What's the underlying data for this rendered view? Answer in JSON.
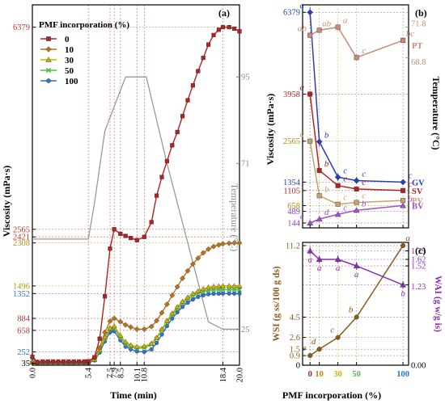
{
  "chart_data": [
    {
      "panel": "(a)",
      "type": "line",
      "xlabel": "Time (min)",
      "ylabel": "Viscosity (mPa·s)",
      "ylabel2": "Temperature (°C)",
      "xlim": [
        0,
        20
      ],
      "ylim": [
        0,
        6800
      ],
      "ylim2": [
        15,
        115
      ],
      "x_ticks": [
        0.0,
        5.4,
        7.5,
        7.9,
        8.5,
        10.1,
        10.8,
        18.4,
        20.0
      ],
      "x_tick_labels": [
        "0.0",
        "5.4",
        "7.5",
        "7.9",
        "8.5",
        "10.1",
        "10.8",
        "18.4",
        "20.0"
      ],
      "y_ticks": [
        35,
        252,
        658,
        884,
        1352,
        1496,
        2308,
        2421,
        2565,
        6379
      ],
      "y_tick_colors": [
        "#000000",
        "#2e6fd8",
        "#c0392b",
        "#c0392b",
        "#2e6fd8",
        "#b59b00",
        "#c08a18",
        "#c0392b",
        "#c0392b",
        "#c0392b"
      ],
      "y2_ticks": [
        25,
        71,
        95
      ],
      "legend_title": "PMF incorporation (%)",
      "legend_position": "top-left",
      "series": [
        {
          "name": "0",
          "color": "#b22222",
          "marker": "square",
          "x": [
            0,
            0.5,
            1,
            1.5,
            2,
            2.5,
            3,
            3.5,
            4,
            4.5,
            5,
            5.4,
            6,
            6.5,
            7,
            7.5,
            7.9,
            8.5,
            9,
            9.5,
            10.1,
            10.8,
            11.5,
            12,
            12.5,
            13,
            13.5,
            14,
            14.5,
            15,
            15.5,
            16,
            16.5,
            17,
            17.5,
            18,
            18.4,
            19,
            19.5,
            20
          ],
          "y": [
            160,
            60,
            70,
            70,
            70,
            70,
            70,
            70,
            70,
            70,
            70,
            75,
            150,
            500,
            1300,
            2200,
            2565,
            2480,
            2440,
            2400,
            2360,
            2421,
            2700,
            3200,
            3550,
            3850,
            4150,
            4400,
            4700,
            5000,
            5280,
            5550,
            5800,
            6050,
            6230,
            6330,
            6379,
            6379,
            6350,
            6300
          ]
        },
        {
          "name": "10",
          "color": "#b8741a",
          "marker": "diamond",
          "x": [
            0,
            0.5,
            1,
            1.5,
            2,
            2.5,
            3,
            3.5,
            4,
            4.5,
            5,
            5.4,
            6,
            6.5,
            7,
            7.5,
            7.9,
            8.5,
            9,
            9.5,
            10.1,
            10.8,
            11.5,
            12,
            12.5,
            13,
            13.5,
            14,
            14.5,
            15,
            15.5,
            16,
            16.5,
            17,
            17.5,
            18,
            18.4,
            19,
            19.5,
            20
          ],
          "y": [
            60,
            60,
            60,
            60,
            60,
            60,
            60,
            60,
            60,
            60,
            60,
            60,
            140,
            330,
            620,
            830,
            884,
            820,
            760,
            720,
            680,
            680,
            730,
            840,
            990,
            1150,
            1320,
            1480,
            1640,
            1780,
            1910,
            2020,
            2120,
            2190,
            2240,
            2270,
            2290,
            2300,
            2308,
            2308
          ]
        },
        {
          "name": "30",
          "color": "#c8b400",
          "marker": "triangle",
          "x": [
            0,
            0.5,
            1,
            1.5,
            2,
            2.5,
            3,
            3.5,
            4,
            4.5,
            5,
            5.4,
            6,
            6.5,
            7,
            7.5,
            7.9,
            8.5,
            9,
            9.5,
            10.1,
            10.8,
            11.5,
            12,
            12.5,
            13,
            13.5,
            14,
            14.5,
            15,
            15.5,
            16,
            16.5,
            17,
            17.5,
            18,
            18.4,
            19,
            19.5,
            20
          ],
          "y": [
            55,
            55,
            55,
            55,
            55,
            55,
            55,
            55,
            55,
            55,
            55,
            55,
            110,
            290,
            530,
            700,
            740,
            560,
            440,
            380,
            350,
            360,
            410,
            520,
            680,
            840,
            980,
            1100,
            1200,
            1280,
            1350,
            1400,
            1440,
            1470,
            1485,
            1490,
            1496,
            1496,
            1496,
            1496
          ]
        },
        {
          "name": "50",
          "color": "#55b84a",
          "marker": "x",
          "x": [
            0,
            0.5,
            1,
            1.5,
            2,
            2.5,
            3,
            3.5,
            4,
            4.5,
            5,
            5.4,
            6,
            6.5,
            7,
            7.5,
            7.9,
            8.5,
            9,
            9.5,
            10.1,
            10.8,
            11.5,
            12,
            12.5,
            13,
            13.5,
            14,
            14.5,
            15,
            15.5,
            16,
            16.5,
            17,
            17.5,
            18,
            18.4,
            19,
            19.5,
            20
          ],
          "y": [
            50,
            50,
            50,
            50,
            50,
            50,
            50,
            50,
            50,
            50,
            50,
            50,
            100,
            270,
            500,
            680,
            700,
            520,
            400,
            350,
            320,
            330,
            390,
            500,
            660,
            810,
            950,
            1070,
            1170,
            1250,
            1310,
            1360,
            1390,
            1410,
            1420,
            1425,
            1425,
            1425,
            1425,
            1425
          ]
        },
        {
          "name": "100",
          "color": "#2e6fd8",
          "marker": "circle",
          "x": [
            0,
            0.5,
            1,
            1.5,
            2,
            2.5,
            3,
            3.5,
            4,
            4.5,
            5,
            5.4,
            6,
            6.5,
            7,
            7.5,
            7.9,
            8.5,
            9,
            9.5,
            10.1,
            10.8,
            11.5,
            12,
            12.5,
            13,
            13.5,
            14,
            14.5,
            15,
            15.5,
            16,
            16.5,
            17,
            17.5,
            18,
            18.4,
            19,
            19.5,
            20
          ],
          "y": [
            140,
            45,
            40,
            40,
            40,
            40,
            40,
            40,
            40,
            40,
            40,
            40,
            90,
            240,
            450,
            620,
            640,
            470,
            350,
            300,
            260,
            252,
            300,
            420,
            580,
            740,
            880,
            1000,
            1100,
            1180,
            1240,
            1290,
            1320,
            1340,
            1348,
            1350,
            1352,
            1352,
            1352,
            1352
          ]
        }
      ],
      "temperature": {
        "x": [
          0,
          0.8,
          1,
          5.4,
          6.0,
          7.0,
          9.0,
          10.0,
          11.0,
          12.0,
          13.0,
          14.0,
          15.0,
          16.0,
          17.0,
          18.4,
          19.0,
          20.0
        ],
        "y": [
          50,
          50,
          50,
          50,
          60,
          80,
          95,
          95,
          95,
          83,
          71,
          60,
          49,
          38,
          27,
          25,
          25,
          25
        ],
        "color": "#999999"
      }
    },
    {
      "panel": "(b)",
      "type": "line",
      "xlabel": "PMF incorporation (%)",
      "ylabel": "Viscosity (mPa·s)",
      "ylabel2": "Temperature (°C)",
      "x": [
        0,
        10,
        30,
        50,
        100
      ],
      "xlim": [
        -8,
        106
      ],
      "ylim": [
        0,
        6600
      ],
      "y_ticks": [
        144,
        489,
        658,
        1105,
        1354,
        2565,
        3958,
        6379
      ],
      "y_tick_colors": [
        "#8a3fc7",
        "#8a3fc7",
        "#b8860b",
        "#b22222",
        "#2b3fb8",
        "#b8860b",
        "#b22222",
        "#2b3fb8"
      ],
      "y2_ticks": [
        68.8,
        71.8
      ],
      "y2lim": [
        52,
        74
      ],
      "series": [
        {
          "name": "GV",
          "color": "#2b3fb8",
          "marker": "diamond",
          "values": [
            6379,
            2550,
            1500,
            1400,
            1354
          ],
          "letters": [
            "a",
            "b",
            "c",
            "c",
            "c"
          ],
          "errors": [
            150,
            150,
            120,
            100,
            80
          ]
        },
        {
          "name": "SV",
          "color": "#b22222",
          "marker": "square",
          "values": [
            3958,
            1700,
            1250,
            1150,
            1105
          ],
          "letters": [
            "a",
            "b",
            "c",
            "c",
            "c"
          ],
          "errors": [
            80,
            80,
            60,
            60,
            50
          ]
        },
        {
          "name": "PV",
          "color": "#c8a06b",
          "marker": "square",
          "values": [
            2565,
            950,
            700,
            750,
            810
          ],
          "letters": [
            "a",
            "b",
            "c",
            "c",
            "c"
          ],
          "errors": [
            60,
            60,
            50,
            50,
            50
          ]
        },
        {
          "name": "BV",
          "color": "#a050d0",
          "marker": "triangle",
          "values": [
            144,
            260,
            400,
            520,
            660
          ],
          "letters": [
            "e",
            "d",
            "c",
            "b",
            "a"
          ],
          "errors": [
            20,
            20,
            20,
            20,
            20
          ]
        },
        {
          "name": "PT",
          "color": "#c98a7a",
          "marker": "square",
          "axis": "right",
          "values": [
            71.0,
            71.5,
            71.8,
            68.8,
            70.5
          ],
          "letters": [
            "ab",
            "ab",
            "a",
            "c",
            "bc"
          ],
          "errors": [
            0.3,
            0.3,
            0.3,
            0.3,
            0.3
          ]
        }
      ]
    },
    {
      "panel": "(c)",
      "type": "line",
      "xlabel": "PMF incorporation (%)",
      "ylabel": "WSI (g ss/100 g ds)",
      "ylabel2": "WAI (g w/g is)",
      "x": [
        0,
        10,
        30,
        50,
        100
      ],
      "x_tick_labels": [
        "0",
        "10",
        "30",
        "50",
        "100"
      ],
      "ylim": [
        0,
        11.5
      ],
      "y_ticks": [
        0.9,
        1.5,
        2.6,
        4.5,
        11.2
      ],
      "y2lim": [
        0,
        1.88
      ],
      "y2_ticks": [
        1.23,
        1.52,
        1.62,
        1.75
      ],
      "y2_tick_labels_extra": [
        "0.00"
      ],
      "y_tick_label_extra": "0",
      "series": [
        {
          "name": "WSI",
          "color": "#8b5a1a",
          "marker": "circle",
          "axis": "left",
          "values": [
            0.9,
            1.5,
            2.6,
            4.5,
            11.2
          ],
          "letters": [
            "e",
            "d",
            "c",
            "b",
            "a"
          ]
        },
        {
          "name": "WAI",
          "color": "#8a2fb0",
          "marker": "triangle",
          "axis": "right",
          "values": [
            1.75,
            1.62,
            1.62,
            1.52,
            1.23
          ],
          "letters": [
            "a",
            "a",
            "a",
            "a",
            "b"
          ],
          "errors": [
            0.06,
            0.06,
            0.06,
            0.06,
            0.06
          ]
        }
      ]
    }
  ]
}
